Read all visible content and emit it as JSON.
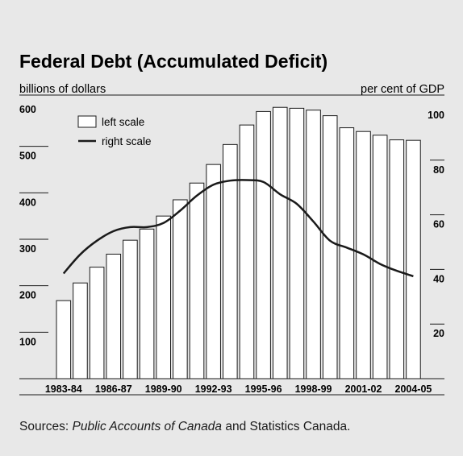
{
  "chart_data": {
    "type": "bar+line",
    "title": "Federal Debt (Accumulated Deficit)",
    "left_axis_label": "billions of dollars",
    "right_axis_label": "per cent of GDP",
    "left_ylim": [
      0,
      600
    ],
    "right_ylim": [
      0,
      100
    ],
    "left_ticks": [
      "600",
      "500",
      "400",
      "300",
      "200",
      "100"
    ],
    "right_ticks": [
      "100",
      "80",
      "60",
      "40",
      "20"
    ],
    "x_tick_labels": [
      "1983-84",
      "1986-87",
      "1989-90",
      "1992-93",
      "1995-96",
      "1998-99",
      "2001-02",
      "2004-05"
    ],
    "categories": [
      "1983-84",
      "1984-85",
      "1985-86",
      "1986-87",
      "1987-88",
      "1988-89",
      "1989-90",
      "1990-91",
      "1991-92",
      "1992-93",
      "1993-94",
      "1994-95",
      "1995-96",
      "1996-97",
      "1997-98",
      "1998-99",
      "1999-00",
      "2000-01",
      "2001-02",
      "2002-03",
      "2003-04",
      "2004-05"
    ],
    "legend": [
      "left scale",
      "right scale"
    ],
    "series": [
      {
        "name": "left scale",
        "type": "bar",
        "axis": "left",
        "values": [
          168,
          206,
          240,
          268,
          298,
          322,
          350,
          385,
          421,
          461,
          504,
          546,
          575,
          584,
          582,
          578,
          566,
          540,
          532,
          524,
          514,
          513
        ]
      },
      {
        "name": "right scale",
        "type": "line",
        "axis": "right",
        "values": [
          38.5,
          45.5,
          50.5,
          54,
          55.5,
          55.5,
          57,
          61.5,
          67,
          71,
          72.5,
          72.7,
          72,
          67.5,
          64,
          57.5,
          50.5,
          48,
          45.5,
          42,
          39.5,
          37.5
        ]
      }
    ]
  },
  "source": {
    "prefix": "Sources: ",
    "italic": "Public Accounts of Canada",
    "suffix": " and Statistics Canada."
  }
}
